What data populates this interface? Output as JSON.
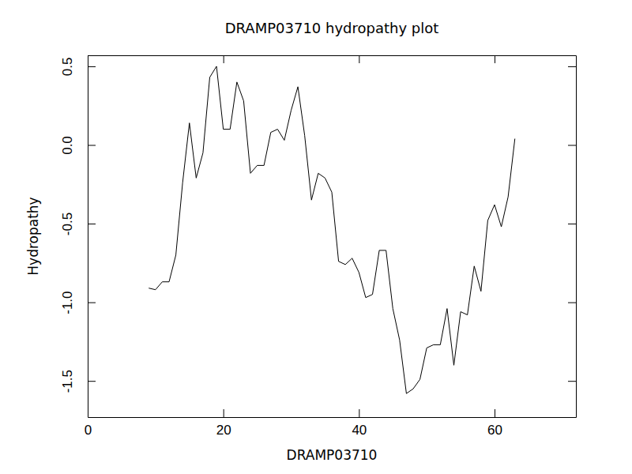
{
  "chart_data": {
    "type": "line",
    "title": "DRAMP03710 hydropathy plot",
    "x_label": "DRAMP03710",
    "y_label": "Hydropathy",
    "x": [
      9,
      10,
      11,
      12,
      13,
      14,
      15,
      16,
      17,
      18,
      19,
      20,
      21,
      22,
      23,
      24,
      25,
      26,
      27,
      28,
      29,
      30,
      31,
      32,
      33,
      34,
      35,
      36,
      37,
      38,
      39,
      40,
      41,
      42,
      43,
      44,
      45,
      46,
      47,
      48,
      49,
      50,
      51,
      52,
      53,
      54,
      55,
      56,
      57,
      58,
      59,
      60,
      61,
      62,
      63
    ],
    "values": [
      -0.91,
      -0.92,
      -0.87,
      -0.87,
      -0.7,
      -0.24,
      0.14,
      -0.21,
      -0.05,
      0.43,
      0.5,
      0.1,
      0.1,
      0.4,
      0.28,
      -0.18,
      -0.13,
      -0.13,
      0.08,
      0.1,
      0.03,
      0.22,
      0.37,
      0.06,
      -0.35,
      -0.18,
      -0.21,
      -0.3,
      -0.74,
      -0.76,
      -0.72,
      -0.81,
      -0.97,
      -0.95,
      -0.67,
      -0.67,
      -1.04,
      -1.24,
      -1.58,
      -1.55,
      -1.49,
      -1.29,
      -1.27,
      -1.27,
      -1.04,
      -1.4,
      -1.06,
      -1.08,
      -0.77,
      -0.93,
      -0.48,
      -0.38,
      -0.52,
      -0.33,
      0.04
    ],
    "color": "#000000",
    "xlim": [
      0,
      72
    ],
    "xticks": [
      0,
      20,
      40,
      60
    ],
    "ylim": [
      -1.73,
      0.57
    ],
    "yticks": [
      -1.5,
      {
        "value": -1.0,
        "label": "-1.0"
      },
      -0.5,
      {
        "value": 0.0,
        "label": "0.0"
      },
      0.5
    ],
    "grid": false
  }
}
